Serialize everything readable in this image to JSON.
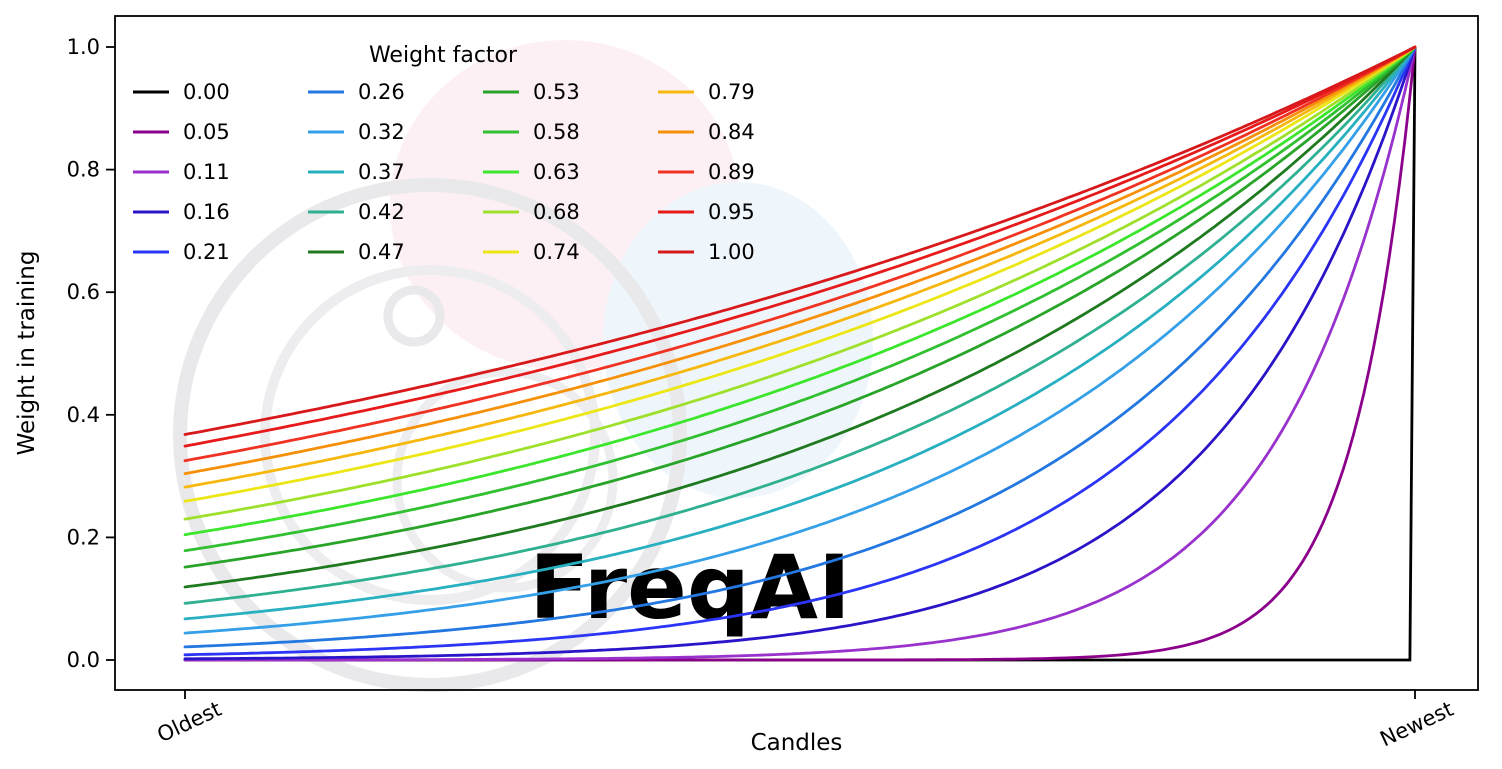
{
  "watermark": {
    "text": "FreqAI"
  },
  "chart_data": {
    "type": "line",
    "title": "",
    "xlabel": "Candles",
    "ylabel": "Weight in training",
    "x_tick_labels": [
      "Oldest",
      "Newest"
    ],
    "y_ticks": [
      0.0,
      0.2,
      0.4,
      0.6,
      0.8,
      1.0
    ],
    "ylim": [
      0.0,
      1.0
    ],
    "x_range": [
      0.0,
      1.0
    ],
    "grid": false,
    "legend_title": "Weight factor",
    "legend_position": "upper left",
    "legend_columns": 4,
    "formula": "weight(x) = exp(-(1 - x) / factor) for factor > 0, rising from exp(-1/factor) at Oldest to 1.0 at Newest; factor 0.00 stays at 0 and jumps to 1.0 at the final candle",
    "series": [
      {
        "label": "0.00",
        "factor": 0.0,
        "color": "#000000",
        "y_at_oldest": 0.0,
        "y_at_newest": 1.0
      },
      {
        "label": "0.05",
        "factor": 0.05,
        "color": "#8b008b",
        "y_at_oldest": 0.0,
        "y_at_newest": 1.0
      },
      {
        "label": "0.11",
        "factor": 0.11,
        "color": "#9932cc",
        "y_at_oldest": 0.0001,
        "y_at_newest": 1.0
      },
      {
        "label": "0.16",
        "factor": 0.16,
        "color": "#2a14c8",
        "y_at_oldest": 0.0019,
        "y_at_newest": 1.0
      },
      {
        "label": "0.21",
        "factor": 0.21,
        "color": "#2b35f5",
        "y_at_oldest": 0.0086,
        "y_at_newest": 1.0
      },
      {
        "label": "0.26",
        "factor": 0.26,
        "color": "#2277e0",
        "y_at_oldest": 0.0213,
        "y_at_newest": 1.0
      },
      {
        "label": "0.32",
        "factor": 0.32,
        "color": "#35a0e8",
        "y_at_oldest": 0.0439,
        "y_at_newest": 1.0
      },
      {
        "label": "0.37",
        "factor": 0.37,
        "color": "#28b0c0",
        "y_at_oldest": 0.067,
        "y_at_newest": 1.0
      },
      {
        "label": "0.42",
        "factor": 0.42,
        "color": "#2fb090",
        "y_at_oldest": 0.0924,
        "y_at_newest": 1.0
      },
      {
        "label": "0.47",
        "factor": 0.47,
        "color": "#1f7a1f",
        "y_at_oldest": 0.1191,
        "y_at_newest": 1.0
      },
      {
        "label": "0.53",
        "factor": 0.53,
        "color": "#28a428",
        "y_at_oldest": 0.1516,
        "y_at_newest": 1.0
      },
      {
        "label": "0.58",
        "factor": 0.58,
        "color": "#30c030",
        "y_at_oldest": 0.1784,
        "y_at_newest": 1.0
      },
      {
        "label": "0.63",
        "factor": 0.63,
        "color": "#3ce62d",
        "y_at_oldest": 0.2044,
        "y_at_newest": 1.0
      },
      {
        "label": "0.68",
        "factor": 0.68,
        "color": "#9fe02d",
        "y_at_oldest": 0.2298,
        "y_at_newest": 1.0
      },
      {
        "label": "0.74",
        "factor": 0.74,
        "color": "#ece617",
        "y_at_oldest": 0.2589,
        "y_at_newest": 1.0
      },
      {
        "label": "0.79",
        "factor": 0.79,
        "color": "#f6b80e",
        "y_at_oldest": 0.282,
        "y_at_newest": 1.0
      },
      {
        "label": "0.84",
        "factor": 0.84,
        "color": "#f79009",
        "y_at_oldest": 0.3041,
        "y_at_newest": 1.0
      },
      {
        "label": "0.89",
        "factor": 0.89,
        "color": "#f03222",
        "y_at_oldest": 0.3251,
        "y_at_newest": 1.0
      },
      {
        "label": "0.95",
        "factor": 0.95,
        "color": "#e61a1a",
        "y_at_oldest": 0.349,
        "y_at_newest": 1.0
      },
      {
        "label": "1.00",
        "factor": 1.0,
        "color": "#d7191c",
        "y_at_oldest": 0.3679,
        "y_at_newest": 1.0
      }
    ]
  }
}
